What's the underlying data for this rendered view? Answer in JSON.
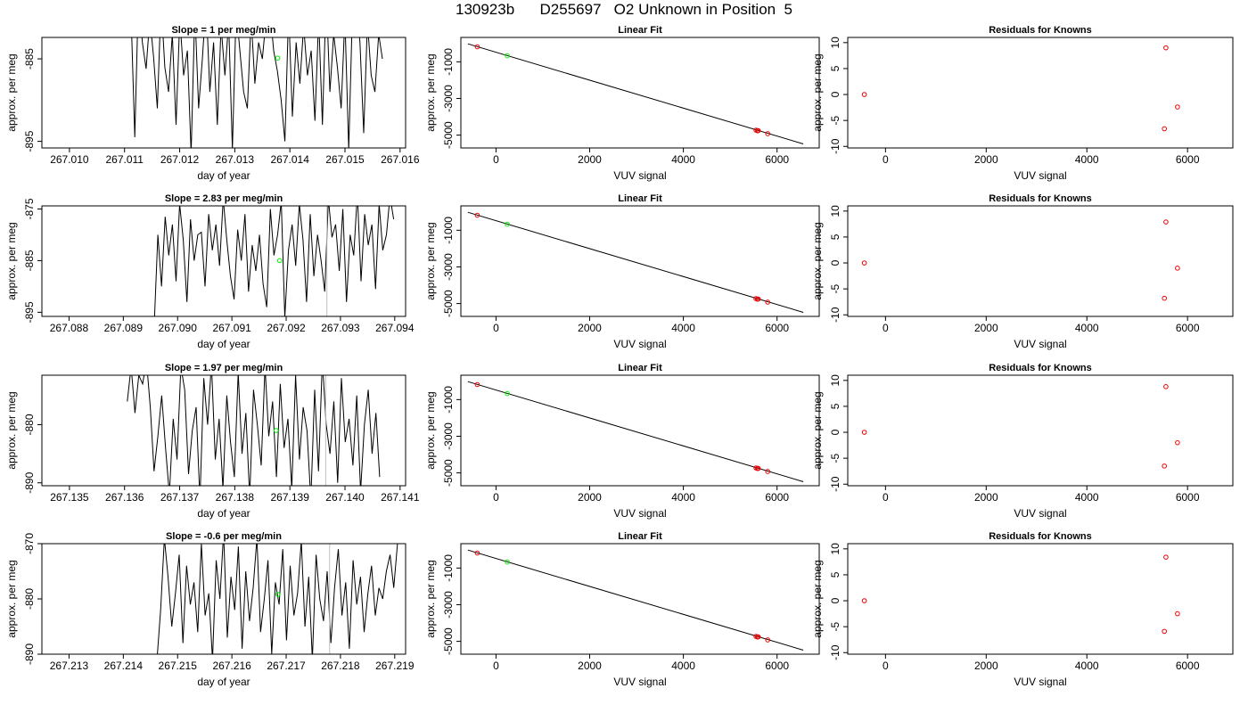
{
  "figure": {
    "title": "130923b      D255697   O2 Unknown in Position  5",
    "colors": {
      "line": "#000000",
      "unknown_point": "#00ee00",
      "known_point": "#ee0000",
      "marker_line": "#bebebe"
    }
  },
  "chart_data": [
    {
      "type": "line",
      "title": "Slope =  1  per meg/min",
      "xlabel": "day of year",
      "ylabel": "approx. per meg",
      "xlim": [
        267.0095,
        267.0161
      ],
      "ylim": [
        -895.8,
        -882.4
      ],
      "xticks": [
        267.01,
        267.011,
        267.012,
        267.013,
        267.014,
        267.015,
        267.016
      ],
      "xtick_labels": [
        "267.010",
        "267.011",
        "267.012",
        "267.013",
        "267.014",
        "267.015",
        "267.016"
      ],
      "yticks": [
        -885,
        -895
      ],
      "ytick_labels": [
        "-885",
        "-895"
      ],
      "trace_x_range": [
        267.01105,
        267.01568
      ],
      "trace": [
        -881.0,
        -879.5,
        -894.5,
        -877.0,
        -883.0,
        -886.2,
        -880.0,
        -884.8,
        -891.0,
        -878.0,
        -886.0,
        -889.0,
        -882.0,
        -893.0,
        -880.0,
        -887.0,
        -884.0,
        -896.5,
        -879.0,
        -891.0,
        -885.0,
        -878.0,
        -889.0,
        -883.0,
        -893.0,
        -881.0,
        -887.0,
        -880.5,
        -896.0,
        -879.0,
        -884.0,
        -889.0,
        -891.0,
        -880.0,
        -888.0,
        -883.0,
        -885.0,
        -880.0,
        -879.0,
        -884.0,
        -886.5,
        -890.0,
        -895.0,
        -879.0,
        -892.0,
        -883.0,
        -888.0,
        -881.0,
        -887.0,
        -884.0,
        -892.5,
        -880.0,
        -893.0,
        -877.0,
        -889.0,
        -882.0,
        -886.0,
        -891.0,
        -880.0,
        -896.0,
        -879.0,
        -878.0,
        -883.0,
        -894.0,
        -880.5,
        -887.0,
        -889.0,
        -882.0,
        -885.0
      ],
      "unknown_point": {
        "x": 267.01378,
        "y": -884.9
      },
      "marker_x": null
    },
    {
      "type": "scatter",
      "title": "Linear Fit",
      "xlabel": "VUV signal",
      "ylabel": "approx. per meg",
      "xlim": [
        -750,
        6900
      ],
      "ylim": [
        -5700,
        330
      ],
      "xticks": [
        0,
        2000,
        4000,
        6000
      ],
      "xtick_labels": [
        "0",
        "2000",
        "4000",
        "6000"
      ],
      "yticks": [
        -1000,
        -3000,
        -5000
      ],
      "ytick_labels": [
        "-1000",
        "-3000",
        "-5000"
      ],
      "fit_line": {
        "x": [
          -600,
          6560
        ],
        "y": [
          -20,
          -5480
        ]
      },
      "known_points": [
        {
          "x": -400,
          "y": -180
        },
        {
          "x": 5550,
          "y": -4730
        },
        {
          "x": 5580,
          "y": -4760
        },
        {
          "x": 5600,
          "y": -4755
        },
        {
          "x": 5800,
          "y": -4920
        }
      ],
      "unknown_points": [
        {
          "x": 240,
          "y": -670
        }
      ]
    },
    {
      "type": "scatter",
      "title": "Residuals for Knowns",
      "xlabel": "VUV signal",
      "ylabel": "approx. per meg",
      "xlim": [
        -750,
        6900
      ],
      "ylim": [
        -10.3,
        11.0
      ],
      "xticks": [
        0,
        2000,
        4000,
        6000
      ],
      "xtick_labels": [
        "0",
        "2000",
        "4000",
        "6000"
      ],
      "yticks": [
        10,
        5,
        0,
        -5,
        -10
      ],
      "ytick_labels": [
        "10",
        "5",
        "0",
        "-5",
        "-10"
      ],
      "points": [
        {
          "x": -420,
          "y": 0.0
        },
        {
          "x": 5570,
          "y": 9.0
        },
        {
          "x": 5800,
          "y": -2.4
        },
        {
          "x": 5540,
          "y": -6.6
        }
      ]
    },
    {
      "type": "line",
      "title": "Slope =  2.83  per meg/min",
      "xlabel": "day of year",
      "ylabel": "approx. per meg",
      "xlim": [
        267.0875,
        267.0942
      ],
      "ylim": [
        -895.8,
        -874.4
      ],
      "xticks": [
        267.088,
        267.089,
        267.09,
        267.091,
        267.092,
        267.093,
        267.094
      ],
      "xtick_labels": [
        "267.088",
        "267.089",
        "267.090",
        "267.091",
        "267.092",
        "267.093",
        "267.094"
      ],
      "yticks": [
        -875,
        -885,
        -895
      ],
      "ytick_labels": [
        "-875",
        "-885",
        "-895"
      ],
      "trace_x_range": [
        267.08957,
        267.09398
      ],
      "trace": [
        -897.0,
        -880.0,
        -890.0,
        -876.5,
        -884.0,
        -878.0,
        -889.0,
        -874.0,
        -881.0,
        -893.0,
        -877.0,
        -885.0,
        -880.0,
        -879.5,
        -890.0,
        -876.0,
        -883.0,
        -878.0,
        -886.0,
        -873.0,
        -881.0,
        -888.0,
        -892.5,
        -879.0,
        -885.0,
        -876.0,
        -891.0,
        -882.0,
        -887.0,
        -880.0,
        -889.5,
        -894.0,
        -875.0,
        -884.0,
        -880.0,
        -873.5,
        -896.0,
        -883.0,
        -878.0,
        -886.0,
        -874.0,
        -881.0,
        -893.0,
        -876.0,
        -888.0,
        -880.0,
        -885.0,
        -891.0,
        -873.0,
        -880.5,
        -878.0,
        -887.0,
        -875.0,
        -893.0,
        -880.0,
        -884.0,
        -872.0,
        -889.0,
        -876.0,
        -882.0,
        -878.0,
        -890.5,
        -874.0,
        -883.0,
        -880.0,
        -872.5,
        -877.0
      ],
      "unknown_point": {
        "x": 267.09188,
        "y": -885.0
      },
      "marker_x": 267.09275
    },
    {
      "type": "scatter",
      "title": "Linear Fit",
      "xlabel": "VUV signal",
      "ylabel": "approx. per meg",
      "xlim": [
        -750,
        6900
      ],
      "ylim": [
        -5700,
        330
      ],
      "xticks": [
        0,
        2000,
        4000,
        6000
      ],
      "xtick_labels": [
        "0",
        "2000",
        "4000",
        "6000"
      ],
      "yticks": [
        -1000,
        -3000,
        -5000
      ],
      "ytick_labels": [
        "-1000",
        "-3000",
        "-5000"
      ],
      "fit_line": {
        "x": [
          -600,
          6560
        ],
        "y": [
          -20,
          -5480
        ]
      },
      "known_points": [
        {
          "x": -400,
          "y": -180
        },
        {
          "x": 5550,
          "y": -4730
        },
        {
          "x": 5580,
          "y": -4760
        },
        {
          "x": 5600,
          "y": -4755
        },
        {
          "x": 5800,
          "y": -4920
        }
      ],
      "unknown_points": [
        {
          "x": 240,
          "y": -670
        }
      ]
    },
    {
      "type": "scatter",
      "title": "Residuals for Knowns",
      "xlabel": "VUV signal",
      "ylabel": "approx. per meg",
      "xlim": [
        -750,
        6900
      ],
      "ylim": [
        -10.3,
        11.0
      ],
      "xticks": [
        0,
        2000,
        4000,
        6000
      ],
      "xtick_labels": [
        "0",
        "2000",
        "4000",
        "6000"
      ],
      "yticks": [
        10,
        5,
        0,
        -5,
        -10
      ],
      "ytick_labels": [
        "10",
        "5",
        "0",
        "-5",
        "-10"
      ],
      "points": [
        {
          "x": -420,
          "y": 0.0
        },
        {
          "x": 5570,
          "y": 7.9
        },
        {
          "x": 5800,
          "y": -1.0
        },
        {
          "x": 5540,
          "y": -6.8
        }
      ]
    },
    {
      "type": "line",
      "title": "Slope =  1.97  per meg/min",
      "xlabel": "day of year",
      "ylabel": "approx. per meg",
      "xlim": [
        267.1345,
        267.1411
      ],
      "ylim": [
        -890.5,
        -871.5
      ],
      "xticks": [
        267.135,
        267.136,
        267.137,
        267.138,
        267.139,
        267.14,
        267.141
      ],
      "xtick_labels": [
        "267.135",
        "267.136",
        "267.137",
        "267.138",
        "267.139",
        "267.140",
        "267.141"
      ],
      "yticks": [
        -880,
        -890
      ],
      "ytick_labels": [
        "-880",
        "-890"
      ],
      "trace_x_range": [
        267.13605,
        267.14063
      ],
      "trace": [
        -876.0,
        -870.0,
        -878.0,
        -871.5,
        -873.0,
        -869.0,
        -877.0,
        -888.0,
        -882.0,
        -875.0,
        -884.0,
        -892.0,
        -879.0,
        -886.0,
        -870.0,
        -874.0,
        -888.5,
        -881.0,
        -877.0,
        -893.0,
        -872.0,
        -880.0,
        -869.5,
        -886.0,
        -879.0,
        -891.0,
        -875.0,
        -883.0,
        -889.0,
        -871.0,
        -885.0,
        -878.0,
        -892.5,
        -874.0,
        -880.0,
        -887.0,
        -870.0,
        -882.0,
        -876.0,
        -889.0,
        -873.0,
        -884.0,
        -879.0,
        -891.0,
        -871.5,
        -886.0,
        -877.0,
        -881.0,
        -893.0,
        -874.0,
        -888.0,
        -869.0,
        -880.0,
        -885.0,
        -876.0,
        -890.0,
        -872.0,
        -883.0,
        -879.0,
        -887.0,
        -875.0,
        -891.5,
        -880.0,
        -874.0,
        -885.0,
        -878.0,
        -889.0
      ],
      "unknown_point": {
        "x": 267.13875,
        "y": -881.0
      },
      "marker_x": 267.13965
    },
    {
      "type": "scatter",
      "title": "Linear Fit",
      "xlabel": "VUV signal",
      "ylabel": "approx. per meg",
      "xlim": [
        -750,
        6900
      ],
      "ylim": [
        -5700,
        330
      ],
      "xticks": [
        0,
        2000,
        4000,
        6000
      ],
      "xtick_labels": [
        "0",
        "2000",
        "4000",
        "6000"
      ],
      "yticks": [
        -1000,
        -3000,
        -5000
      ],
      "ytick_labels": [
        "-1000",
        "-3000",
        "-5000"
      ],
      "fit_line": {
        "x": [
          -600,
          6560
        ],
        "y": [
          -20,
          -5480
        ]
      },
      "known_points": [
        {
          "x": -400,
          "y": -180
        },
        {
          "x": 5550,
          "y": -4730
        },
        {
          "x": 5580,
          "y": -4760
        },
        {
          "x": 5600,
          "y": -4755
        },
        {
          "x": 5800,
          "y": -4920
        }
      ],
      "unknown_points": [
        {
          "x": 240,
          "y": -670
        }
      ]
    },
    {
      "type": "scatter",
      "title": "Residuals for Knowns",
      "xlabel": "VUV signal",
      "ylabel": "approx. per meg",
      "xlim": [
        -750,
        6900
      ],
      "ylim": [
        -10.3,
        11.0
      ],
      "xticks": [
        0,
        2000,
        4000,
        6000
      ],
      "xtick_labels": [
        "0",
        "2000",
        "4000",
        "6000"
      ],
      "yticks": [
        10,
        5,
        0,
        -5,
        -10
      ],
      "ytick_labels": [
        "10",
        "5",
        "0",
        "-5",
        "-10"
      ],
      "points": [
        {
          "x": -420,
          "y": 0.0
        },
        {
          "x": 5570,
          "y": 8.8
        },
        {
          "x": 5800,
          "y": -2.0
        },
        {
          "x": 5540,
          "y": -6.5
        }
      ]
    },
    {
      "type": "line",
      "title": "Slope =  -0.6  per meg/min",
      "xlabel": "day of year",
      "ylabel": "approx. per meg",
      "xlim": [
        267.2125,
        267.2192
      ],
      "ylim": [
        -890.0,
        -870.0
      ],
      "xticks": [
        267.213,
        267.214,
        267.215,
        267.216,
        267.217,
        267.218,
        267.219
      ],
      "xtick_labels": [
        "267.213",
        "267.214",
        "267.215",
        "267.216",
        "267.217",
        "267.218",
        "267.219"
      ],
      "yticks": [
        -870,
        -880,
        -890
      ],
      "ytick_labels": [
        "-870",
        "-880",
        "-890"
      ],
      "trace_x_range": [
        267.21462,
        267.21905
      ],
      "trace": [
        -891.0,
        -882.0,
        -869.0,
        -876.0,
        -885.0,
        -879.0,
        -872.0,
        -888.0,
        -874.0,
        -881.0,
        -877.0,
        -886.0,
        -870.0,
        -883.0,
        -879.0,
        -891.0,
        -873.0,
        -880.0,
        -868.0,
        -887.0,
        -876.0,
        -882.0,
        -870.5,
        -889.0,
        -875.0,
        -884.0,
        -878.0,
        -869.0,
        -886.0,
        -880.0,
        -873.0,
        -890.0,
        -877.0,
        -881.0,
        -871.0,
        -887.5,
        -874.0,
        -883.0,
        -879.0,
        -869.5,
        -885.0,
        -876.0,
        -891.0,
        -872.0,
        -880.0,
        -884.0,
        -875.0,
        -888.0,
        -878.0,
        -871.0,
        -883.0,
        -877.0,
        -889.0,
        -873.0,
        -881.0,
        -876.0,
        -886.0,
        -879.0,
        -874.0,
        -883.0,
        -878.0,
        -880.0,
        -875.0,
        -872.0,
        -878.0,
        -870.0
      ],
      "unknown_point": {
        "x": 267.21685,
        "y": -879.2
      },
      "marker_x": 267.2178
    },
    {
      "type": "scatter",
      "title": "Linear Fit",
      "xlabel": "VUV signal",
      "ylabel": "approx. per meg",
      "xlim": [
        -750,
        6900
      ],
      "ylim": [
        -5700,
        330
      ],
      "xticks": [
        0,
        2000,
        4000,
        6000
      ],
      "xtick_labels": [
        "0",
        "2000",
        "4000",
        "6000"
      ],
      "yticks": [
        -1000,
        -3000,
        -5000
      ],
      "ytick_labels": [
        "-1000",
        "-3000",
        "-5000"
      ],
      "fit_line": {
        "x": [
          -600,
          6560
        ],
        "y": [
          -20,
          -5480
        ]
      },
      "known_points": [
        {
          "x": -400,
          "y": -180
        },
        {
          "x": 5550,
          "y": -4730
        },
        {
          "x": 5580,
          "y": -4760
        },
        {
          "x": 5600,
          "y": -4755
        },
        {
          "x": 5800,
          "y": -4920
        }
      ],
      "unknown_points": [
        {
          "x": 240,
          "y": -670
        }
      ]
    },
    {
      "type": "scatter",
      "title": "Residuals for Knowns",
      "xlabel": "VUV signal",
      "ylabel": "approx. per meg",
      "xlim": [
        -750,
        6900
      ],
      "ylim": [
        -10.3,
        11.0
      ],
      "xticks": [
        0,
        2000,
        4000,
        6000
      ],
      "xtick_labels": [
        "0",
        "2000",
        "4000",
        "6000"
      ],
      "yticks": [
        10,
        5,
        0,
        -5,
        -10
      ],
      "ytick_labels": [
        "10",
        "5",
        "0",
        "-5",
        "-10"
      ],
      "points": [
        {
          "x": -420,
          "y": 0.0
        },
        {
          "x": 5570,
          "y": 8.4
        },
        {
          "x": 5800,
          "y": -2.5
        },
        {
          "x": 5540,
          "y": -5.9
        }
      ]
    }
  ]
}
